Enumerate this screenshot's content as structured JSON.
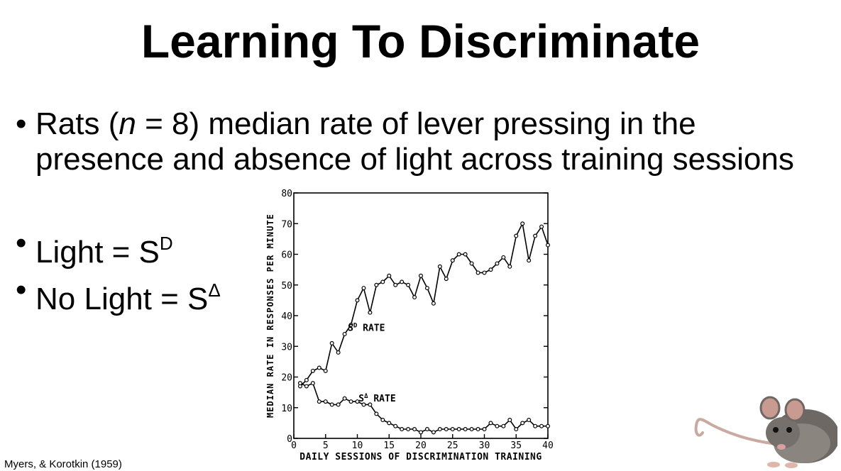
{
  "slide": {
    "title": "Learning To Discriminate",
    "bullet1": {
      "bullet": "•",
      "pre": "Rats (",
      "n": "n",
      "post": " = 8) median rate of lever pressing in the presence and absence of light across training sessions"
    },
    "bullet2": {
      "bullet": "•",
      "text": "Light = S",
      "sup": "D"
    },
    "bullet3": {
      "bullet": "•",
      "text": "No Light = S",
      "sup": "Δ"
    },
    "citation": "Myers, & Korotkin (1959)"
  },
  "colors": {
    "text": "#000000",
    "background": "#ffffff"
  },
  "icons": {
    "rat": "rat-photo"
  },
  "chart_data": {
    "type": "line",
    "xlabel": "DAILY SESSIONS OF DISCRIMINATION TRAINING",
    "ylabel": "MEDIAN RATE IN RESPONSES PER MINUTE",
    "xlim": [
      0,
      40
    ],
    "ylim": [
      0,
      80
    ],
    "xticks": [
      0,
      5,
      10,
      15,
      20,
      25,
      30,
      35,
      40
    ],
    "yticks": [
      0,
      10,
      20,
      30,
      40,
      50,
      60,
      70,
      80
    ],
    "grid": false,
    "series": [
      {
        "name": "Sᴰ RATE",
        "x": [
          1,
          2,
          3,
          4,
          5,
          6,
          7,
          8,
          9,
          10,
          11,
          12,
          13,
          14,
          15,
          16,
          17,
          18,
          19,
          20,
          21,
          22,
          23,
          24,
          25,
          26,
          27,
          28,
          29,
          30,
          31,
          32,
          33,
          34,
          35,
          36,
          37,
          38,
          39,
          40
        ],
        "values": [
          17,
          19,
          22,
          23,
          22,
          31,
          28,
          34,
          37,
          45,
          49,
          41,
          50,
          51,
          53,
          50,
          51,
          50,
          46,
          53,
          49,
          44,
          56,
          52,
          58,
          60,
          60,
          57,
          54,
          54,
          55,
          57,
          59,
          56,
          66,
          70,
          58,
          66,
          69,
          63
        ]
      },
      {
        "name": "SΔ RATE",
        "x": [
          1,
          2,
          3,
          4,
          5,
          6,
          7,
          8,
          9,
          10,
          11,
          12,
          13,
          14,
          15,
          16,
          17,
          18,
          19,
          20,
          21,
          22,
          23,
          24,
          25,
          26,
          27,
          28,
          29,
          30,
          31,
          32,
          33,
          34,
          35,
          36,
          37,
          38,
          39,
          40
        ],
        "values": [
          18,
          17,
          18,
          12,
          12,
          11,
          11,
          13,
          12,
          12,
          11,
          11,
          8,
          6,
          5,
          4,
          3,
          3,
          3,
          2,
          3,
          2,
          3,
          3,
          3,
          3,
          3,
          3,
          3,
          3,
          5,
          4,
          4,
          6,
          3,
          5,
          6,
          4,
          4,
          4
        ]
      }
    ],
    "annotations": [
      {
        "text": "S",
        "sup": "D",
        "rest": " RATE",
        "x": 8.5,
        "y": 35
      },
      {
        "text": "S",
        "sup": "Δ",
        "rest": " RATE",
        "x": 10.2,
        "y": 12
      }
    ]
  }
}
